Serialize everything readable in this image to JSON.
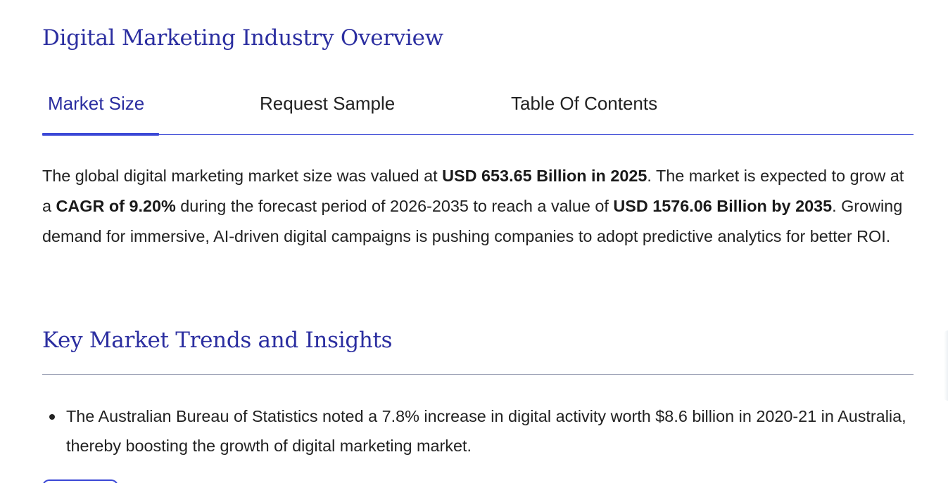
{
  "page": {
    "title": "Digital Marketing Industry Overview"
  },
  "tabs": [
    {
      "label": "Market Size",
      "active": true
    },
    {
      "label": "Request Sample",
      "active": false
    },
    {
      "label": "Table Of Contents",
      "active": false
    }
  ],
  "intro": {
    "text_1": "The global digital marketing market size was valued at ",
    "bold_1": "USD 653.65 Billion in 2025",
    "text_2": ". The market is expected to grow at a ",
    "bold_2": "CAGR of 9.20%",
    "text_3": " during the forecast period of 2026-2035 to reach a value of ",
    "bold_3": "USD 1576.06 Billion by 2035",
    "text_4": ". Growing demand for immersive, AI-driven digital campaigns is pushing companies to adopt predictive analytics for better ROI."
  },
  "section": {
    "title": "Key Market Trends and Insights"
  },
  "bullets": [
    "The Australian Bureau of Statistics noted a 7.8% increase in digital activity worth $8.6 billion in 2020-21 in Australia, thereby boosting the growth of digital marketing market."
  ],
  "colors": {
    "heading": "#2b2ea0",
    "accent": "#3b48d6",
    "text": "#222222",
    "rule": "#9aa0b4"
  }
}
